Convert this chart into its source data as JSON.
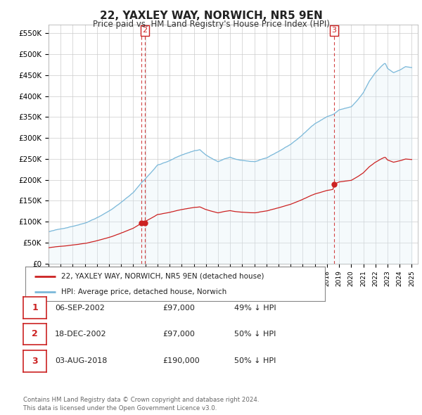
{
  "title": "22, YAXLEY WAY, NORWICH, NR5 9EN",
  "subtitle": "Price paid vs. HM Land Registry's House Price Index (HPI)",
  "ylabel_ticks": [
    0,
    50000,
    100000,
    150000,
    200000,
    250000,
    300000,
    350000,
    400000,
    450000,
    500000,
    550000
  ],
  "ytick_labels": [
    "£0",
    "£50K",
    "£100K",
    "£150K",
    "£200K",
    "£250K",
    "£300K",
    "£350K",
    "£400K",
    "£450K",
    "£500K",
    "£550K"
  ],
  "ylim": [
    0,
    570000
  ],
  "xlim_start": 1995.0,
  "xlim_end": 2025.5,
  "hpi_color": "#7ab8d9",
  "hpi_fill": "#daedf7",
  "price_color": "#cc2222",
  "dashed_color": "#cc2222",
  "sales": [
    {
      "label": "1",
      "date": "06-SEP-2002",
      "price": 97000,
      "x_year": 2002.67
    },
    {
      "label": "2",
      "date": "18-DEC-2002",
      "price": 97000,
      "x_year": 2002.96
    },
    {
      "label": "3",
      "date": "03-AUG-2018",
      "price": 190000,
      "x_year": 2018.58
    }
  ],
  "legend_entries": [
    "22, YAXLEY WAY, NORWICH, NR5 9EN (detached house)",
    "HPI: Average price, detached house, Norwich"
  ],
  "table_rows": [
    [
      "1",
      "06-SEP-2002",
      "£97,000",
      "49% ↓ HPI"
    ],
    [
      "2",
      "18-DEC-2002",
      "£97,000",
      "50% ↓ HPI"
    ],
    [
      "3",
      "03-AUG-2018",
      "£190,000",
      "50% ↓ HPI"
    ]
  ],
  "footer": "Contains HM Land Registry data © Crown copyright and database right 2024.\nThis data is licensed under the Open Government Licence v3.0.",
  "bg_color": "#ffffff",
  "plot_bg_color": "#ffffff",
  "grid_color": "#cccccc"
}
